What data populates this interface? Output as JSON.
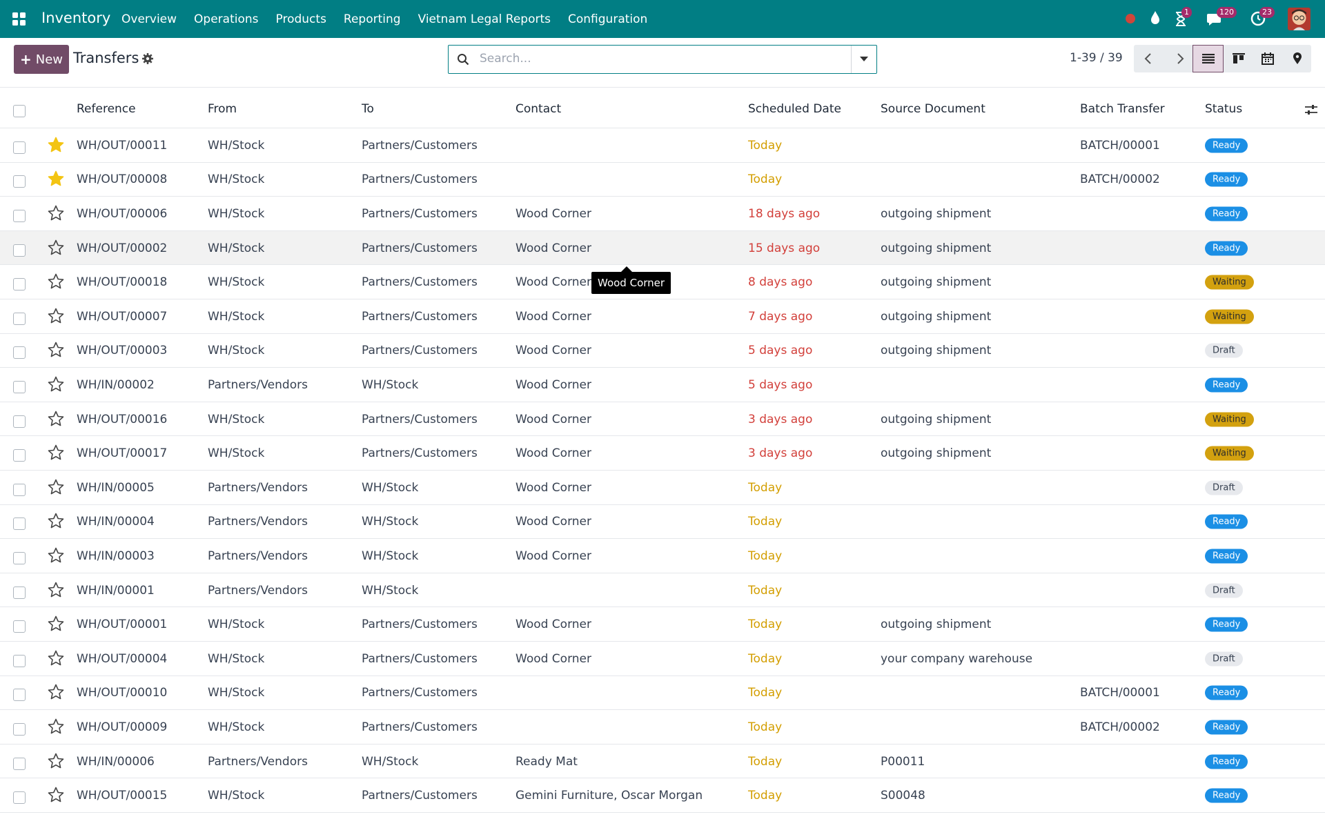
{
  "navbar": {
    "app_name": "Inventory",
    "menu": [
      "Overview",
      "Operations",
      "Products",
      "Reporting",
      "Vietnam Legal Reports",
      "Configuration"
    ],
    "badges": {
      "activities": "1",
      "messages": "120",
      "calls": "23"
    }
  },
  "control_panel": {
    "new_button": "New",
    "title": "Transfers",
    "search_placeholder": "Search...",
    "pager": "1-39 / 39"
  },
  "table": {
    "columns": [
      "Reference",
      "From",
      "To",
      "Contact",
      "Scheduled Date",
      "Source Document",
      "Batch Transfer",
      "Status"
    ],
    "rows": [
      {
        "starred": true,
        "late": false,
        "status_color": "blue",
        "cells": [
          "WH/OUT/00011",
          "WH/Stock",
          "Partners/Customers",
          null,
          "Today",
          null,
          "BATCH/00001",
          "Ready"
        ]
      },
      {
        "starred": true,
        "late": false,
        "status_color": "blue",
        "cells": [
          "WH/OUT/00008",
          "WH/Stock",
          "Partners/Customers",
          null,
          "Today",
          null,
          "BATCH/00002",
          "Ready"
        ]
      },
      {
        "starred": false,
        "late": true,
        "status_color": "blue",
        "cells": [
          "WH/OUT/00006",
          "WH/Stock",
          "Partners/Customers",
          "Wood Corner",
          "18 days ago",
          "outgoing shipment",
          null,
          "Ready"
        ]
      },
      {
        "starred": false,
        "late": true,
        "status_color": "blue",
        "hovered": true,
        "cells": [
          "WH/OUT/00002",
          "WH/Stock",
          "Partners/Customers",
          "Wood Corner",
          "15 days ago",
          "outgoing shipment",
          null,
          "Ready"
        ]
      },
      {
        "starred": false,
        "late": true,
        "status_color": "yellow",
        "cells": [
          "WH/OUT/00018",
          "WH/Stock",
          "Partners/Customers",
          "Wood Corner",
          "8 days ago",
          "outgoing shipment",
          null,
          "Waiting"
        ]
      },
      {
        "starred": false,
        "late": true,
        "status_color": "yellow",
        "cells": [
          "WH/OUT/00007",
          "WH/Stock",
          "Partners/Customers",
          "Wood Corner",
          "7 days ago",
          "outgoing shipment",
          null,
          "Waiting"
        ]
      },
      {
        "starred": false,
        "late": true,
        "status_color": "grey",
        "cells": [
          "WH/OUT/00003",
          "WH/Stock",
          "Partners/Customers",
          "Wood Corner",
          "5 days ago",
          "outgoing shipment",
          null,
          "Draft"
        ]
      },
      {
        "starred": false,
        "late": true,
        "status_color": "blue",
        "cells": [
          "WH/IN/00002",
          "Partners/Vendors",
          "WH/Stock",
          "Wood Corner",
          "5 days ago",
          null,
          null,
          "Ready"
        ]
      },
      {
        "starred": false,
        "late": true,
        "status_color": "yellow",
        "cells": [
          "WH/OUT/00016",
          "WH/Stock",
          "Partners/Customers",
          "Wood Corner",
          "3 days ago",
          "outgoing shipment",
          null,
          "Waiting"
        ]
      },
      {
        "starred": false,
        "late": true,
        "status_color": "yellow",
        "cells": [
          "WH/OUT/00017",
          "WH/Stock",
          "Partners/Customers",
          "Wood Corner",
          "3 days ago",
          "outgoing shipment",
          null,
          "Waiting"
        ]
      },
      {
        "starred": false,
        "late": false,
        "status_color": "grey",
        "cells": [
          "WH/IN/00005",
          "Partners/Vendors",
          "WH/Stock",
          "Wood Corner",
          "Today",
          null,
          null,
          "Draft"
        ]
      },
      {
        "starred": false,
        "late": false,
        "status_color": "blue",
        "cells": [
          "WH/IN/00004",
          "Partners/Vendors",
          "WH/Stock",
          "Wood Corner",
          "Today",
          null,
          null,
          "Ready"
        ]
      },
      {
        "starred": false,
        "late": false,
        "status_color": "blue",
        "cells": [
          "WH/IN/00003",
          "Partners/Vendors",
          "WH/Stock",
          "Wood Corner",
          "Today",
          null,
          null,
          "Ready"
        ]
      },
      {
        "starred": false,
        "late": false,
        "status_color": "grey",
        "cells": [
          "WH/IN/00001",
          "Partners/Vendors",
          "WH/Stock",
          null,
          "Today",
          null,
          null,
          "Draft"
        ]
      },
      {
        "starred": false,
        "late": false,
        "status_color": "blue",
        "cells": [
          "WH/OUT/00001",
          "WH/Stock",
          "Partners/Customers",
          "Wood Corner",
          "Today",
          "outgoing shipment",
          null,
          "Ready"
        ]
      },
      {
        "starred": false,
        "late": false,
        "status_color": "grey",
        "cells": [
          "WH/OUT/00004",
          "WH/Stock",
          "Partners/Customers",
          "Wood Corner",
          "Today",
          "your company warehouse",
          null,
          "Draft"
        ]
      },
      {
        "starred": false,
        "late": false,
        "status_color": "blue",
        "cells": [
          "WH/OUT/00010",
          "WH/Stock",
          "Partners/Customers",
          null,
          "Today",
          null,
          "BATCH/00001",
          "Ready"
        ]
      },
      {
        "starred": false,
        "late": false,
        "status_color": "blue",
        "cells": [
          "WH/OUT/00009",
          "WH/Stock",
          "Partners/Customers",
          null,
          "Today",
          null,
          "BATCH/00002",
          "Ready"
        ]
      },
      {
        "starred": false,
        "late": false,
        "status_color": "blue",
        "cells": [
          "WH/IN/00006",
          "Partners/Vendors",
          "WH/Stock",
          "Ready Mat",
          "Today",
          "P00011",
          null,
          "Ready"
        ]
      },
      {
        "starred": false,
        "late": false,
        "status_color": "blue",
        "cells": [
          "WH/OUT/00015",
          "WH/Stock",
          "Partners/Customers",
          "Gemini Furniture, Oscar Morgan",
          "Today",
          "S00048",
          null,
          "Ready"
        ]
      }
    ]
  },
  "tooltip": "Wood Corner"
}
